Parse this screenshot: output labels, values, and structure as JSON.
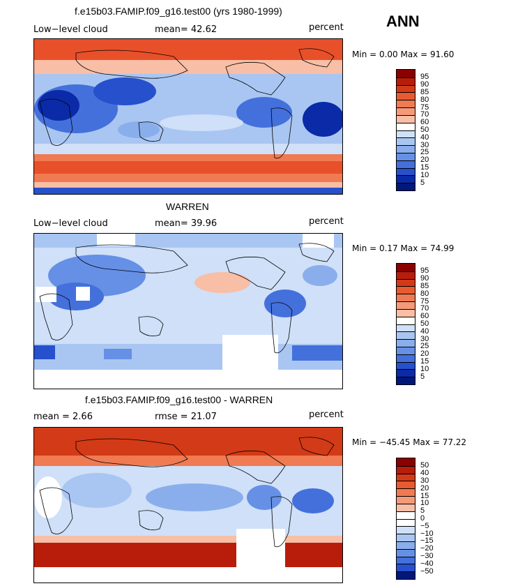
{
  "season": "ANN",
  "panels": [
    {
      "id": "model",
      "title": "f.e15b03.FAMIP.f09_g16.test00 (yrs 1980-1999)",
      "left_label": "Low−level cloud",
      "mid_label": "mean=  42.62",
      "right_label": "percent",
      "minmax": "Min =   0.00 Max =  91.60",
      "colorbar": {
        "labels": [
          "95",
          "90",
          "85",
          "80",
          "75",
          "70",
          "60",
          "50",
          "40",
          "30",
          "25",
          "20",
          "15",
          "10",
          "5"
        ],
        "colors": [
          "#8b0000",
          "#b81d0c",
          "#d33a17",
          "#e85a2f",
          "#f07a52",
          "#f59a78",
          "#f8bea6",
          "#ffffff",
          "#cfe0f8",
          "#a9c6f2",
          "#8aaeec",
          "#6690e6",
          "#4470dc",
          "#2650cc",
          "#0b2aa8",
          "#00187a"
        ]
      }
    },
    {
      "id": "obs",
      "title": "WARREN",
      "left_label": "Low−level cloud",
      "mid_label": "mean=  39.96",
      "right_label": "percent",
      "minmax": "Min =   0.17 Max =  74.99",
      "colorbar": {
        "labels": [
          "95",
          "90",
          "85",
          "80",
          "75",
          "70",
          "60",
          "50",
          "40",
          "30",
          "25",
          "20",
          "15",
          "10",
          "5"
        ],
        "colors": [
          "#8b0000",
          "#b81d0c",
          "#d33a17",
          "#e85a2f",
          "#f07a52",
          "#f59a78",
          "#f8bea6",
          "#ffffff",
          "#cfe0f8",
          "#a9c6f2",
          "#8aaeec",
          "#6690e6",
          "#4470dc",
          "#2650cc",
          "#0b2aa8",
          "#00187a"
        ]
      }
    },
    {
      "id": "diff",
      "title": "f.e15b03.FAMIP.f09_g16.test00 - WARREN",
      "left_label": "mean =   2.66",
      "mid_label": "rmse =  21.07",
      "right_label": "percent",
      "minmax": "Min = −45.45 Max =  77.22",
      "colorbar": {
        "labels": [
          "50",
          "40",
          "30",
          "20",
          "15",
          "10",
          "5",
          "0",
          "−5",
          "−10",
          "−15",
          "−20",
          "−30",
          "−40",
          "−50"
        ],
        "colors": [
          "#8b0000",
          "#b81d0c",
          "#d33a17",
          "#e85a2f",
          "#f07a52",
          "#f59a78",
          "#f8bea6",
          "#ffffff",
          "#ffffff",
          "#cfe0f8",
          "#a9c6f2",
          "#8aaeec",
          "#6690e6",
          "#4470dc",
          "#2650cc",
          "#00187a"
        ]
      }
    }
  ]
}
